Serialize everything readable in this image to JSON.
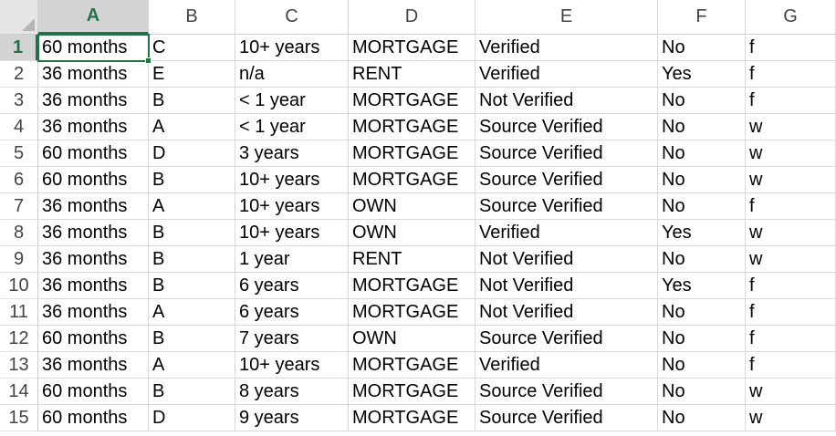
{
  "columns": [
    "A",
    "B",
    "C",
    "D",
    "E",
    "F",
    "G"
  ],
  "selected_column": "A",
  "selected_row": "1",
  "rows": [
    {
      "num": "1",
      "cells": [
        "60 months",
        "C",
        "10+ years",
        "MORTGAGE",
        "Verified",
        "No",
        "f"
      ]
    },
    {
      "num": "2",
      "cells": [
        "36 months",
        "E",
        "n/a",
        "RENT",
        "Verified",
        "Yes",
        "f"
      ]
    },
    {
      "num": "3",
      "cells": [
        "36 months",
        "B",
        "< 1 year",
        "MORTGAGE",
        "Not Verified",
        "No",
        "f"
      ]
    },
    {
      "num": "4",
      "cells": [
        "36 months",
        "A",
        "< 1 year",
        "MORTGAGE",
        "Source Verified",
        "No",
        "w"
      ]
    },
    {
      "num": "5",
      "cells": [
        "60 months",
        "D",
        "3 years",
        "MORTGAGE",
        "Source Verified",
        "No",
        "w"
      ]
    },
    {
      "num": "6",
      "cells": [
        "60 months",
        "B",
        "10+ years",
        "MORTGAGE",
        "Source Verified",
        "No",
        "w"
      ]
    },
    {
      "num": "7",
      "cells": [
        "36 months",
        "A",
        "10+ years",
        "OWN",
        "Source Verified",
        "No",
        "f"
      ]
    },
    {
      "num": "8",
      "cells": [
        "36 months",
        "B",
        "10+ years",
        "OWN",
        "Verified",
        "Yes",
        "w"
      ]
    },
    {
      "num": "9",
      "cells": [
        "36 months",
        "B",
        "1 year",
        "RENT",
        "Not Verified",
        "No",
        "w"
      ]
    },
    {
      "num": "10",
      "cells": [
        "36 months",
        "B",
        "6 years",
        "MORTGAGE",
        "Not Verified",
        "Yes",
        "f"
      ]
    },
    {
      "num": "11",
      "cells": [
        "36 months",
        "A",
        "6 years",
        "MORTGAGE",
        "Not Verified",
        "No",
        "f"
      ]
    },
    {
      "num": "12",
      "cells": [
        "60 months",
        "B",
        "7 years",
        "OWN",
        "Source Verified",
        "No",
        "f"
      ]
    },
    {
      "num": "13",
      "cells": [
        "36 months",
        "A",
        "10+ years",
        "MORTGAGE",
        "Verified",
        "No",
        "f"
      ]
    },
    {
      "num": "14",
      "cells": [
        "60 months",
        "B",
        "8 years",
        "MORTGAGE",
        "Source Verified",
        "No",
        "w"
      ]
    },
    {
      "num": "15",
      "cells": [
        "60 months",
        "D",
        "9 years",
        "MORTGAGE",
        "Source Verified",
        "No",
        "w"
      ]
    }
  ],
  "colors": {
    "accent": "#217346",
    "header_selected_bg": "#d3d3d3",
    "gridline": "#d9d9d9"
  }
}
